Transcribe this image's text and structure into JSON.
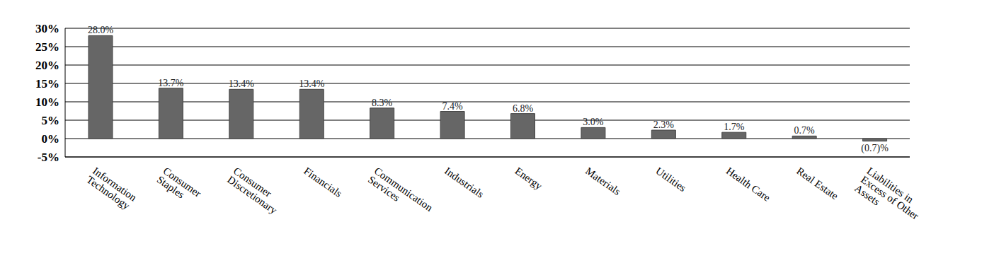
{
  "chart_data": {
    "type": "bar",
    "categories": [
      "Information Technology",
      "Consumer Staples",
      "Consumer Discretionary",
      "Financials",
      "Communication Services",
      "Industrials",
      "Energy",
      "Materials",
      "Utilities",
      "Health Care",
      "Real Estate",
      "Liabilities in Excess of Other Assets"
    ],
    "values": [
      28.0,
      13.7,
      13.4,
      13.4,
      8.3,
      7.4,
      6.8,
      3.0,
      2.3,
      1.7,
      0.7,
      -0.7
    ],
    "value_labels": [
      "28.0%",
      "13.7%",
      "13.4%",
      "13.4%",
      "8.3%",
      "7.4%",
      "6.8%",
      "3.0%",
      "2.3%",
      "1.7%",
      "0.7%",
      "(0.7)%"
    ],
    "color": "#666666",
    "ylim": [
      -5,
      30
    ],
    "yticks": [
      {
        "value": -5,
        "label": "-5%"
      },
      {
        "value": 0,
        "label": "0%"
      },
      {
        "value": 5,
        "label": "5%"
      },
      {
        "value": 10,
        "label": "10%"
      },
      {
        "value": 15,
        "label": "15%"
      },
      {
        "value": 20,
        "label": "20%"
      },
      {
        "value": 25,
        "label": "25%"
      },
      {
        "value": 30,
        "label": "30%"
      }
    ],
    "grid": true,
    "data_labels": true
  }
}
